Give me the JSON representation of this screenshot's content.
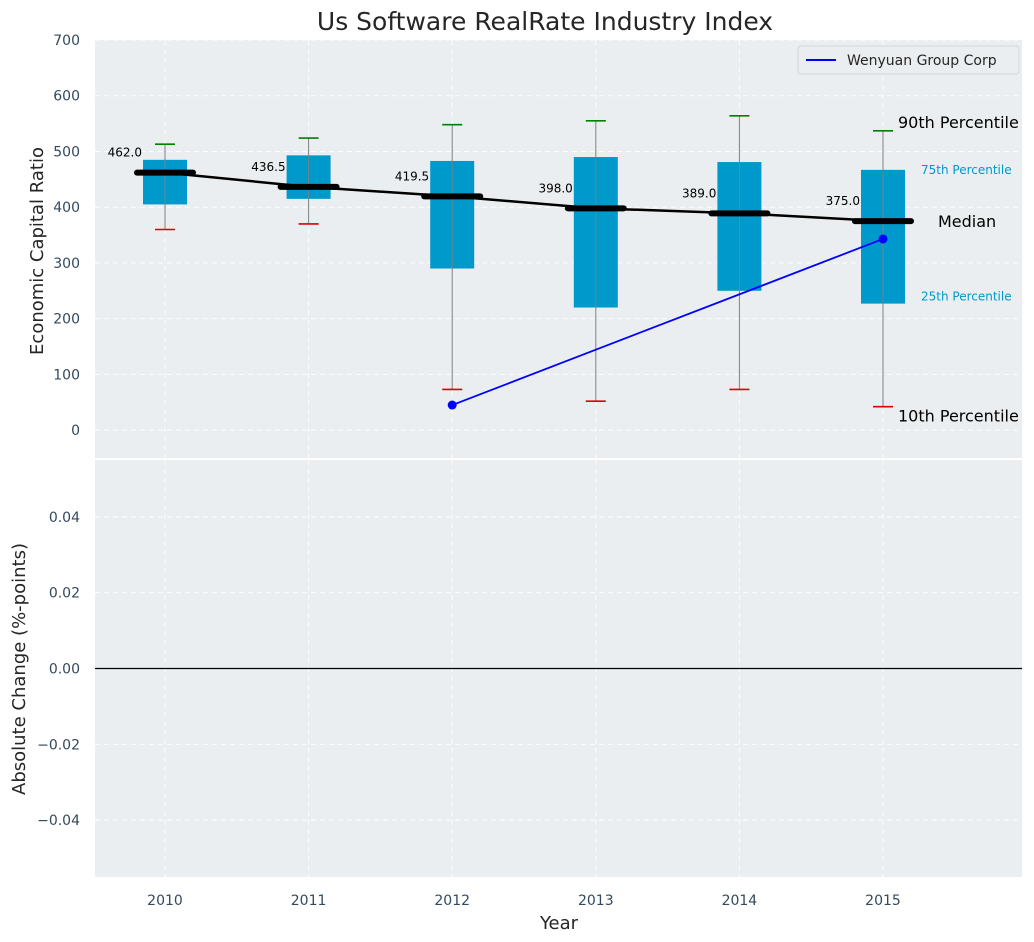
{
  "chart_data": [
    {
      "type": "box",
      "title": "Us Software RealRate Industry Index",
      "xlabel": "",
      "ylabel": "Economic Capital Ratio",
      "ylim": [
        -50,
        700
      ],
      "yticks": [
        0,
        100,
        200,
        300,
        400,
        500,
        600,
        700
      ],
      "categories": [
        "2010",
        "2011",
        "2012",
        "2013",
        "2014",
        "2015"
      ],
      "grid": true,
      "percentiles": {
        "p10": [
          360,
          370,
          73,
          52,
          73,
          42
        ],
        "p25": [
          405,
          415,
          290,
          220,
          250,
          227
        ],
        "median": [
          462.0,
          436.5,
          419.5,
          398.0,
          389.0,
          375.0
        ],
        "p75": [
          485,
          493,
          483,
          490,
          481,
          467
        ],
        "p90": [
          513,
          524,
          548,
          555,
          564,
          537
        ]
      },
      "median_labels": [
        "462.0",
        "436.5",
        "419.5",
        "398.0",
        "389.0",
        "375.0"
      ],
      "series": [
        {
          "name": "Wenyuan Group Corp",
          "x": [
            "2012",
            "2015"
          ],
          "values": [
            45,
            343
          ],
          "color": "#0000ff"
        }
      ],
      "legend": {
        "placement": "top-right",
        "entries": [
          "Wenyuan Group Corp"
        ]
      },
      "annotations": {
        "p90": "90th Percentile",
        "p75": "75th Percentile",
        "median": "Median",
        "p25": "25th Percentile",
        "p10": "10th Percentile"
      },
      "colors": {
        "box": "#0099cc",
        "median_line": "#000000",
        "p90_cap": "#008000",
        "p10_cap": "#dd0000",
        "whisker": "#808080",
        "background": "#eaeef0",
        "small_annotation": "#0099cc"
      }
    },
    {
      "type": "line",
      "title": "",
      "xlabel": "Year",
      "ylabel": "Absolute Change (%-points)",
      "ylim": [
        -0.055,
        0.055
      ],
      "yticks": [
        "−0.04",
        "−0.02",
        "0.00",
        "0.02",
        "0.04"
      ],
      "categories": [
        "2010",
        "2011",
        "2012",
        "2013",
        "2014",
        "2015"
      ],
      "reference_line": 0,
      "grid": true,
      "series": []
    }
  ]
}
